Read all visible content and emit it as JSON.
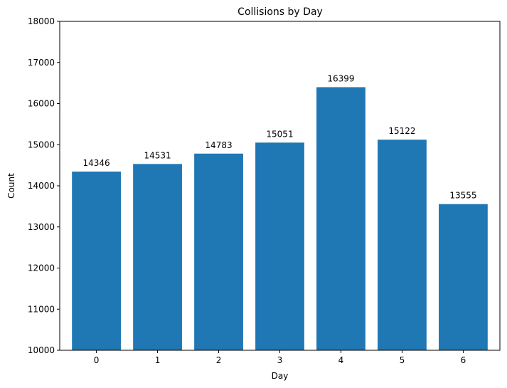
{
  "chart_data": {
    "type": "bar",
    "title": "Collisions by Day",
    "xlabel": "Day",
    "ylabel": "Count",
    "categories": [
      "0",
      "1",
      "2",
      "3",
      "4",
      "5",
      "6"
    ],
    "values": [
      14346,
      14531,
      14783,
      15051,
      16399,
      15122,
      13555
    ],
    "data_labels": [
      "14346",
      "14531",
      "14783",
      "15051",
      "16399",
      "15122",
      "13555"
    ],
    "yticks": [
      10000,
      11000,
      12000,
      13000,
      14000,
      15000,
      16000,
      17000,
      18000
    ],
    "ylim": [
      10000,
      18000
    ],
    "bar_color": "#1f77b4",
    "grid": false,
    "legend": "none"
  }
}
